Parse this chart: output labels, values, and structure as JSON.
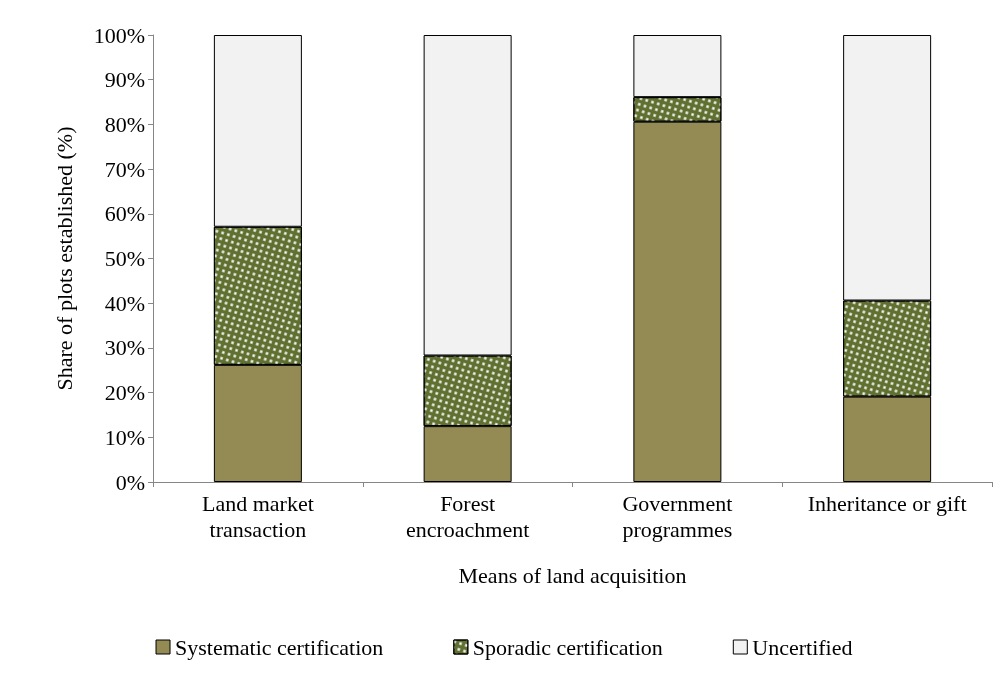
{
  "chart_data": {
    "type": "bar",
    "stacked": true,
    "xlabel": "Means of land acquisition",
    "ylabel": "Share of plots established (%)",
    "categories": [
      "Land market\ntransaction",
      "Forest\nencroachment",
      "Government\nprogrammes",
      "Inheritance or gift"
    ],
    "series": [
      {
        "name": "Systematic certification",
        "color": "#948a54",
        "values": [
          26.2,
          12.5,
          80.6,
          19.1
        ]
      },
      {
        "name": "Sporadic certification",
        "color": "#5f7030",
        "values": [
          30.9,
          15.8,
          5.5,
          21.5
        ]
      },
      {
        "name": "Uncertified",
        "color": "#f2f2f2",
        "values": [
          42.9,
          71.7,
          13.9,
          59.4
        ]
      }
    ],
    "ylim": [
      0,
      100
    ],
    "yticks": [
      {
        "value": 0,
        "label": "0%"
      },
      {
        "value": 10,
        "label": "10%"
      },
      {
        "value": 20,
        "label": "20%"
      },
      {
        "value": 30,
        "label": "30%"
      },
      {
        "value": 40,
        "label": "40%"
      },
      {
        "value": 50,
        "label": "50%"
      },
      {
        "value": 60,
        "label": "60%"
      },
      {
        "value": 70,
        "label": "70%"
      },
      {
        "value": 80,
        "label": "80%"
      },
      {
        "value": 90,
        "label": "90%"
      },
      {
        "value": 100,
        "label": "100%"
      }
    ],
    "grid": false,
    "legend": "bottom"
  }
}
